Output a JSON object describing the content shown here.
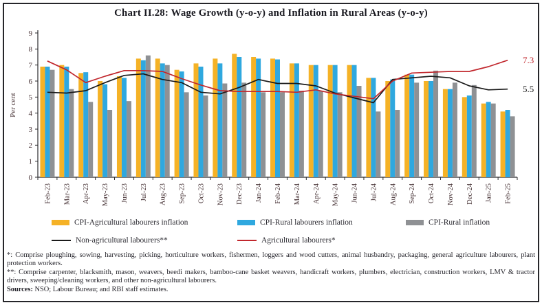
{
  "title": "Chart II.28: Wage Growth (y-o-y) and Inflation in Rural Areas (y-o-y)",
  "chart_data": {
    "type": "bar+line",
    "title": "Chart II.28: Wage Growth (y-o-y) and Inflation in Rural Areas (y-o-y)",
    "ylabel": "Per cent",
    "xlabel": "",
    "ylim": [
      0,
      9
    ],
    "ytick_step": 1,
    "grid": false,
    "legend_position": "bottom",
    "categories": [
      "Feb-23",
      "Mar-23",
      "Apr-23",
      "May-23",
      "Jun-23",
      "Jul-23",
      "Aug-23",
      "Sep-23",
      "Oct-23",
      "Nov-23",
      "Dec-23",
      "Jan-24",
      "Feb-24",
      "Mar-24",
      "Apr-24",
      "May-24",
      "Jun-24",
      "Jul-24",
      "Aug-24",
      "Sep-24",
      "Oct-24",
      "Nov-24",
      "Dec-24",
      "Jan-25",
      "Feb-25"
    ],
    "bar_series": [
      {
        "name": "CPI-Agricultural labourers inflation",
        "color": "#F5B226",
        "values": [
          6.9,
          7.0,
          6.5,
          6.0,
          6.3,
          7.4,
          7.4,
          6.7,
          7.1,
          7.4,
          7.7,
          7.5,
          7.4,
          7.1,
          7.0,
          7.0,
          7.0,
          6.2,
          6.0,
          6.4,
          6.0,
          5.5,
          5.0,
          4.6,
          4.1
        ]
      },
      {
        "name": "CPI-Rural labourers inflation",
        "color": "#2FA8DF",
        "values": [
          6.9,
          6.9,
          6.55,
          5.8,
          6.2,
          7.3,
          7.1,
          6.6,
          6.9,
          7.1,
          7.5,
          7.4,
          7.35,
          7.1,
          7.0,
          7.0,
          7.0,
          6.2,
          6.1,
          6.4,
          6.0,
          5.5,
          5.1,
          4.7,
          4.2
        ]
      },
      {
        "name": "CPI-Rural inflation",
        "color": "#8F9194",
        "values": [
          6.7,
          5.5,
          4.7,
          4.2,
          4.75,
          7.6,
          7.0,
          5.3,
          5.1,
          5.85,
          5.9,
          5.3,
          5.3,
          5.4,
          5.4,
          5.3,
          5.7,
          4.1,
          4.2,
          5.9,
          6.65,
          5.9,
          5.75,
          4.6,
          3.8
        ]
      }
    ],
    "line_series": [
      {
        "name": "Non-agricultural labourers**",
        "color": "#1A1A1A",
        "end_label": "5.5",
        "values": [
          5.3,
          5.25,
          5.4,
          5.9,
          6.35,
          6.45,
          6.1,
          5.9,
          5.3,
          5.2,
          5.6,
          6.1,
          5.85,
          5.85,
          5.7,
          5.25,
          4.95,
          4.65,
          6.1,
          6.2,
          6.3,
          6.2,
          5.7,
          5.45,
          5.5
        ]
      },
      {
        "name": "Agricultural labourers*",
        "color": "#C1272D",
        "end_label": "7.3",
        "values": [
          7.25,
          6.7,
          5.9,
          6.3,
          6.65,
          6.65,
          6.6,
          6.15,
          5.75,
          5.4,
          5.35,
          5.35,
          5.35,
          5.3,
          5.45,
          5.2,
          5.05,
          4.9,
          6.0,
          6.5,
          6.55,
          6.6,
          6.6,
          6.9,
          7.3
        ]
      }
    ]
  },
  "footnotes": {
    "star1": "*: Comprise ploughing, sowing, harvesting, picking, horticulture workers, fishermen, loggers and wood cutters, animal husbandry, packaging, general agriculture labourers, plant protection workers.",
    "star2": "**: Comprise carpenter, blacksmith, mason, weavers, beedi makers, bamboo-cane basket weavers, handicraft workers, plumbers, electrician, construction workers, LMV & tractor drivers, sweeping/cleaning workers, and other non-agricultural labourers.",
    "sources_label": "Sources:",
    "sources_text": " NSO; Labour Bureau; and RBI staff estimates."
  }
}
